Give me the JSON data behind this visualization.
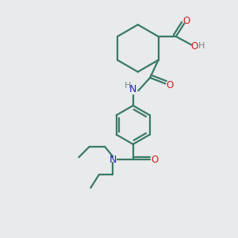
{
  "bg_color": "#e8eaeb",
  "bond_color": "#3a7a6a",
  "N_color": "#2222cc",
  "O_color": "#cc2222",
  "H_color": "#778888",
  "line_width": 1.6,
  "fig_size": [
    3.0,
    3.0
  ],
  "dpi": 100,
  "xlim": [
    0,
    10
  ],
  "ylim": [
    0,
    10
  ]
}
